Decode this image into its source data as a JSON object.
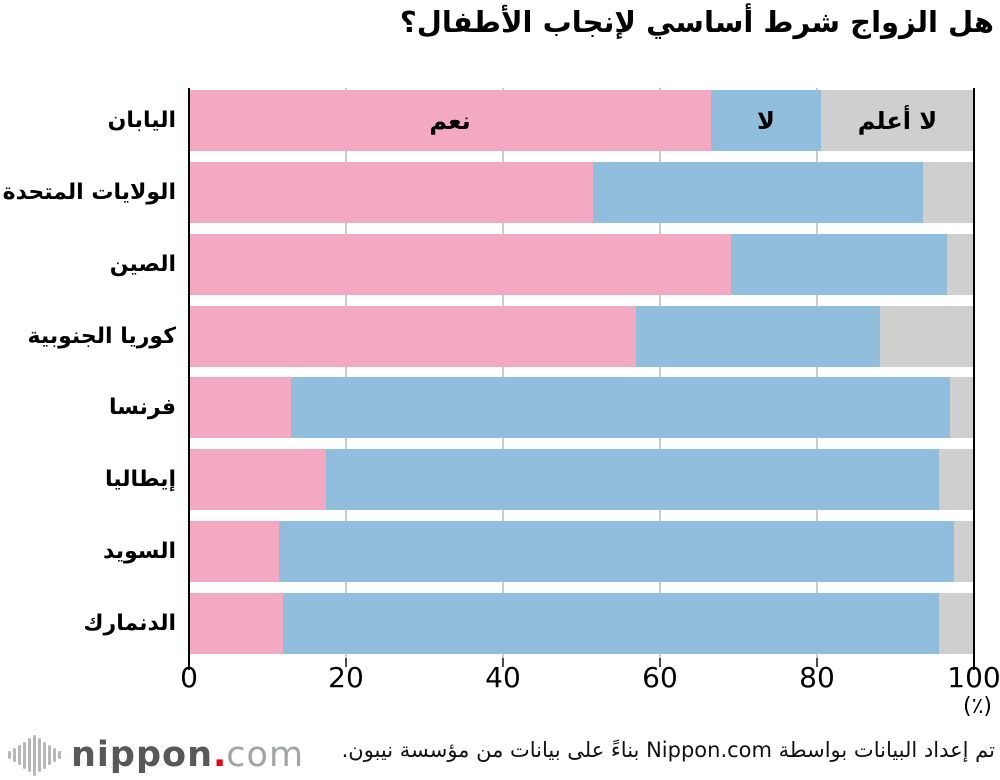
{
  "title": "هل الزواج شرط أساسي لإنجاب الأطفال؟",
  "chart_data": {
    "type": "bar",
    "orientation": "horizontal",
    "stacked": true,
    "title": "هل الزواج شرط أساسي لإنجاب الأطفال؟",
    "categories": [
      "اليابان",
      "الولايات المتحدة",
      "الصين",
      "كوريا الجنوبية",
      "فرنسا",
      "إيطاليا",
      "السويد",
      "الدنمارك"
    ],
    "series": [
      {
        "name": "نعم",
        "key": "yes",
        "color": "#f4a9c3",
        "values": [
          66.5,
          51.5,
          69.0,
          57.0,
          13.0,
          17.5,
          11.5,
          12.0
        ]
      },
      {
        "name": "لا",
        "key": "no",
        "color": "#92bedd",
        "values": [
          14.0,
          42.0,
          27.5,
          31.0,
          84.0,
          78.0,
          86.0,
          83.5
        ]
      },
      {
        "name": "لا أعلم",
        "key": "dontknow",
        "color": "#cfcfcf",
        "values": [
          19.5,
          6.5,
          3.5,
          12.0,
          3.0,
          4.5,
          2.5,
          4.5
        ]
      }
    ],
    "xlim": [
      0,
      100
    ],
    "tick_values": [
      0,
      20,
      40,
      60,
      80,
      100
    ],
    "x_ticks": [
      "0",
      "20",
      "40",
      "60",
      "80",
      "100"
    ],
    "x_unit": "(٪)",
    "grid": true,
    "legend_position": "inside-first-bar",
    "grid_color": "#cccccc",
    "axis_color": "#000000"
  },
  "footer": {
    "attribution": "تم إعداد البيانات بواسطة Nippon.com بناءً على بيانات من مؤسسة نيبون.",
    "logo": {
      "main": "nippon",
      "dot": ".",
      "suffix": "com",
      "dot_color": "#e60012"
    }
  },
  "logo_wave_heights": [
    8,
    14,
    20,
    27,
    34,
    41,
    34,
    27,
    20,
    14,
    8
  ]
}
